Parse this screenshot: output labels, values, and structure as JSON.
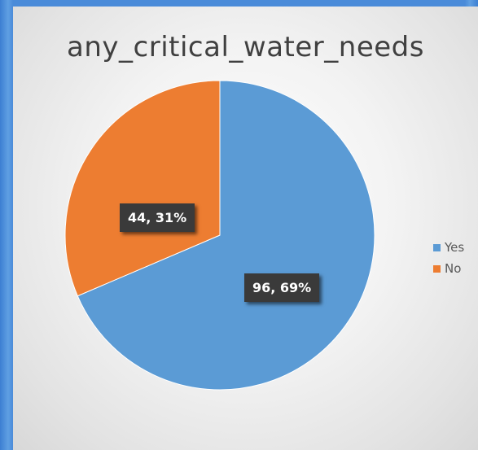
{
  "chart_data": {
    "type": "pie",
    "title": "any_critical_water_needs",
    "slices": [
      {
        "label": "Yes",
        "value": 96,
        "percent": "69%",
        "data_label": "96, 69%",
        "color": "#5b9bd5"
      },
      {
        "label": "No",
        "value": 44,
        "percent": "31%",
        "data_label": "44, 31%",
        "color": "#ed7d31"
      }
    ],
    "legend": {
      "placement": "right",
      "entries": [
        "Yes",
        "No"
      ]
    },
    "data_label_style": {
      "background": "#3a3a3a",
      "text_color": "#ffffff"
    }
  }
}
